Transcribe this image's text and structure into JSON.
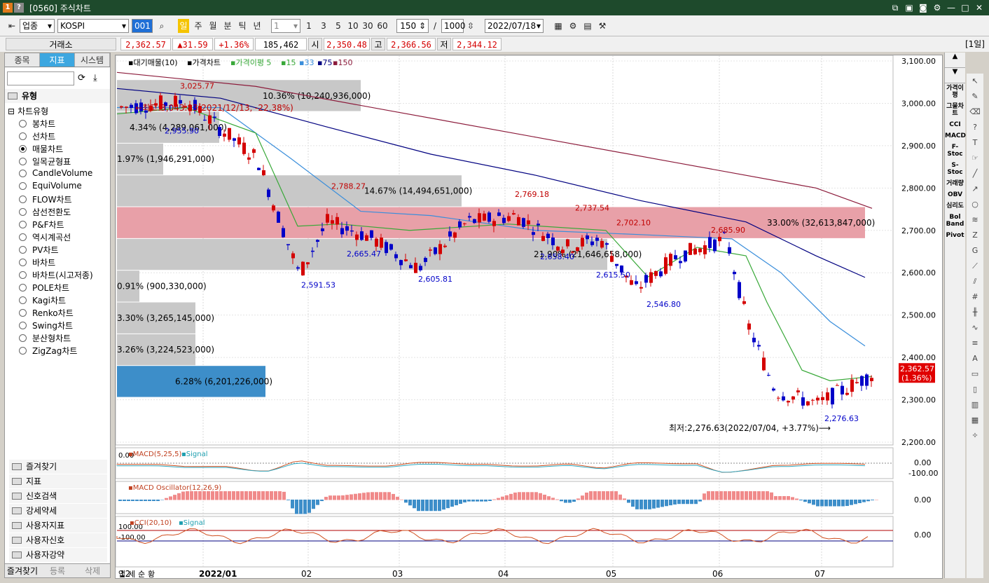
{
  "window": {
    "title": "[0560] 주식차트",
    "ico1": "1",
    "ico2": "?"
  },
  "toolbar": {
    "market": "업종",
    "index_name": "KOSPI",
    "code_box": "001",
    "periods": [
      "일",
      "주",
      "월",
      "분",
      "틱",
      "년"
    ],
    "interval": "1",
    "intervals": [
      "1",
      "3",
      "5",
      "10",
      "30",
      "60"
    ],
    "count": "150",
    "count_sep": "/",
    "total": "1000",
    "date": "2022/07/18"
  },
  "info": {
    "exchange": "거래소",
    "price": "2,362.57",
    "change": "▲31.59",
    "change_pct": "+1.36%",
    "volume": "185,462",
    "open_label": "시",
    "open": "2,350.48",
    "high_label": "고",
    "high": "2,366.56",
    "low_label": "저",
    "low": "2,344.12",
    "period_badge": "[1일]"
  },
  "left_panel": {
    "tabs": [
      "종목",
      "지표",
      "시스템"
    ],
    "section": "유형",
    "group": "차트유형",
    "chart_types": [
      "봉차트",
      "선차트",
      "매물차트",
      "일목균형표",
      "CandleVolume",
      "EquiVolume",
      "FLOW차트",
      "삼선전환도",
      "P&F차트",
      "역시계곡선",
      "PV차트",
      "바차트",
      "바차트(시고저종)",
      "POLE차트",
      "Kagi차트",
      "Renko차트",
      "Swing차트",
      "분산형차트",
      "ZigZag차트"
    ],
    "selected": "매물차트",
    "folders": [
      "즐겨찾기",
      "지표",
      "신호검색",
      "강세약세",
      "사용자지표",
      "사용자신호",
      "사용자강약"
    ],
    "bottom_tabs": [
      "즐겨찾기",
      "등록",
      "삭제"
    ]
  },
  "right_indicators": [
    "가격이평",
    "그물차트",
    "CCI",
    "MACD",
    "F-Stoc",
    "S-Stoc",
    "거래량",
    "OBV",
    "심리도",
    "Bol Band",
    "Pivot"
  ],
  "chart_data": {
    "type": "bar",
    "legend": [
      "대기매물(10)",
      "가격차트",
      "가격이평 5",
      "15",
      "33",
      "75",
      "150"
    ],
    "yaxis": [
      "3,100.00",
      "3,000.00",
      "2,900.00",
      "2,800.00",
      "2,700.00",
      "2,600.00",
      "2,500.00",
      "2,400.00",
      "2,300.00",
      "2,200.00"
    ],
    "ylim": [
      2200,
      3100
    ],
    "xaxis": [
      "12",
      "2022/01",
      "02",
      "03",
      "04",
      "05",
      "06",
      "07"
    ],
    "volume_profile": [
      {
        "low": 2980,
        "high": 3055,
        "pct": "10.36% (10,240,936,000)"
      },
      {
        "low": 2905,
        "high": 2980,
        "pct": "4.34% (4,289,061,000)"
      },
      {
        "low": 2830,
        "high": 2905,
        "pct": "1.97% (1,946,291,000)"
      },
      {
        "low": 2755,
        "high": 2830,
        "pct": "14.67% (14,494,651,000)"
      },
      {
        "low": 2680,
        "high": 2755,
        "pct": "33.00% (32,613,847,000)"
      },
      {
        "low": 2605,
        "high": 2680,
        "pct": "21.90% (21,646,658,000)"
      },
      {
        "low": 2530,
        "high": 2605,
        "pct": "0.91% (900,330,000)"
      },
      {
        "low": 2455,
        "high": 2530,
        "pct": "3.30% (3,265,145,000)"
      },
      {
        "low": 2380,
        "high": 2455,
        "pct": "3.26% (3,224,523,000)"
      },
      {
        "low": 2305,
        "high": 2380,
        "pct": "6.28% (6,201,226,000)"
      }
    ],
    "annotations": {
      "high_note": "최고:3,043.83(2021/12/13, -22.38%)",
      "low_note": "최저:2,276.63(2022/07/04, +3.77%)",
      "peaks": [
        "3,025.77",
        "2,788.27",
        "2,769.18",
        "2,737.54",
        "2,702.10",
        "2,685.90"
      ],
      "troughs": [
        "2,955.90",
        "2,665.47",
        "2,591.53",
        "2,605.81",
        "2,658.40",
        "2,615.50",
        "2,546.80",
        "2,276.63"
      ],
      "last_price": "2,362.57",
      "last_pct": "(1.36%)"
    },
    "macd": {
      "label": "MACD(5,25,5)",
      "signal": "Signal",
      "axis": [
        "0.00",
        "-100.00"
      ],
      "left": "0.00"
    },
    "osc": {
      "label": "MACD Oscillator(12,26,9)",
      "axis": "0.00"
    },
    "cci": {
      "label": "CCI(20,10)",
      "signal": "Signal",
      "axis": "0.00",
      "left1": "100.00",
      "left2": "-100.00"
    }
  },
  "bottom_buttons": [
    "업",
    "세",
    "순",
    "황"
  ],
  "colors": {
    "title_bg": "#1e4a2c",
    "up": "#d40000",
    "down": "#0000c8",
    "profile": "#c8c8c8",
    "profile_max": "#e8a0a8",
    "profile_low": "#3d8ec9"
  }
}
